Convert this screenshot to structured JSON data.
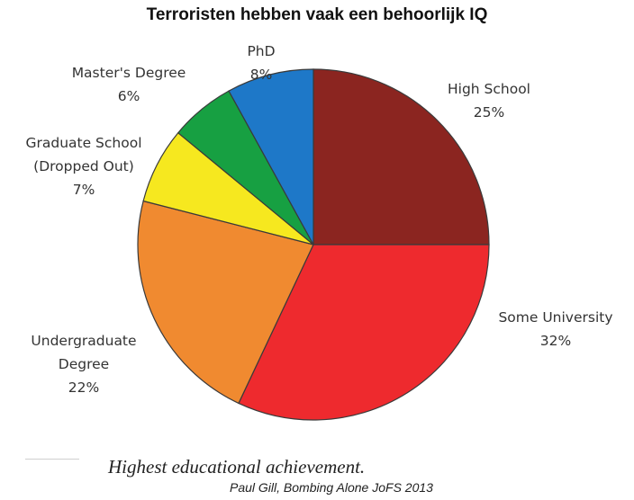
{
  "chart_data": {
    "type": "pie",
    "title": "Terroristen hebben vaak een behoorlijk IQ",
    "caption": "Highest educational achievement.",
    "source": "Paul Gill, Bombing Alone JoFS 2013",
    "slices": [
      {
        "label_lines": [
          "High School"
        ],
        "value_label": "25%",
        "value": 25,
        "color": "#8b2520"
      },
      {
        "label_lines": [
          "Some University"
        ],
        "value_label": "32%",
        "value": 32,
        "color": "#ee2a2e"
      },
      {
        "label_lines": [
          "Undergraduate",
          "Degree"
        ],
        "value_label": "22%",
        "value": 22,
        "color": "#f08a30"
      },
      {
        "label_lines": [
          "Graduate School",
          "(Dropped Out)"
        ],
        "value_label": "7%",
        "value": 7,
        "color": "#f6e81f"
      },
      {
        "label_lines": [
          "Master's Degree"
        ],
        "value_label": "6%",
        "value": 6,
        "color": "#17a042"
      },
      {
        "label_lines": [
          "PhD"
        ],
        "value_label": "8%",
        "value": 8,
        "color": "#1e78c8"
      }
    ]
  }
}
